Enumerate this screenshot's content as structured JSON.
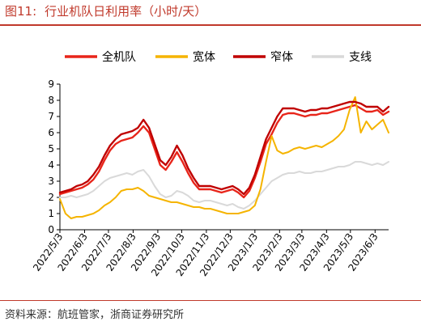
{
  "figure": {
    "number": "图11:",
    "title": "行业机队日利用率（小时/天）",
    "source": "资料来源：航班管家，浙商证券研究所"
  },
  "chart_data": {
    "type": "line",
    "title": "行业机队日利用率（小时/天）",
    "xlabel": "",
    "ylabel": "",
    "ylim": [
      0,
      9
    ],
    "yticks": [
      0,
      1,
      2,
      3,
      4,
      5,
      6,
      7,
      8,
      9
    ],
    "xlim": [
      "2022-05-03",
      "2023-06-20"
    ],
    "xticks": [
      "2022/5/3",
      "2022/6/3",
      "2022/7/3",
      "2022/8/3",
      "2022/9/3",
      "2022/10/3",
      "2022/11/3",
      "2022/12/3",
      "2023/1/3",
      "2023/2/3",
      "2023/3/3",
      "2023/4/3",
      "2023/5/3",
      "2023/6/3"
    ],
    "grid": false,
    "legend_position": "top",
    "series": [
      {
        "name": "全机队",
        "color": "#e8251a",
        "width": 2.4,
        "points": [
          [
            "2022-05-03",
            2.2
          ],
          [
            "2022-05-10",
            2.3
          ],
          [
            "2022-05-17",
            2.4
          ],
          [
            "2022-05-24",
            2.5
          ],
          [
            "2022-05-31",
            2.6
          ],
          [
            "2022-06-07",
            2.8
          ],
          [
            "2022-06-14",
            3.1
          ],
          [
            "2022-06-21",
            3.6
          ],
          [
            "2022-06-28",
            4.3
          ],
          [
            "2022-07-05",
            4.9
          ],
          [
            "2022-07-12",
            5.3
          ],
          [
            "2022-07-19",
            5.5
          ],
          [
            "2022-07-26",
            5.6
          ],
          [
            "2022-08-02",
            5.7
          ],
          [
            "2022-08-09",
            6.0
          ],
          [
            "2022-08-16",
            6.4
          ],
          [
            "2022-08-23",
            6.0
          ],
          [
            "2022-08-30",
            5.0
          ],
          [
            "2022-09-06",
            4.0
          ],
          [
            "2022-09-13",
            3.7
          ],
          [
            "2022-09-20",
            4.2
          ],
          [
            "2022-09-27",
            4.8
          ],
          [
            "2022-10-04",
            4.2
          ],
          [
            "2022-10-11",
            3.5
          ],
          [
            "2022-10-18",
            2.9
          ],
          [
            "2022-10-25",
            2.5
          ],
          [
            "2022-11-01",
            2.5
          ],
          [
            "2022-11-08",
            2.5
          ],
          [
            "2022-11-15",
            2.4
          ],
          [
            "2022-11-22",
            2.3
          ],
          [
            "2022-11-29",
            2.4
          ],
          [
            "2022-12-06",
            2.5
          ],
          [
            "2022-12-13",
            2.3
          ],
          [
            "2022-12-20",
            2.0
          ],
          [
            "2022-12-27",
            2.4
          ],
          [
            "2023-01-03",
            3.2
          ],
          [
            "2023-01-10",
            4.2
          ],
          [
            "2023-01-17",
            5.3
          ],
          [
            "2023-01-24",
            5.9
          ],
          [
            "2023-01-31",
            6.6
          ],
          [
            "2023-02-07",
            7.1
          ],
          [
            "2023-02-14",
            7.2
          ],
          [
            "2023-02-21",
            7.2
          ],
          [
            "2023-02-28",
            7.1
          ],
          [
            "2023-03-07",
            7.0
          ],
          [
            "2023-03-14",
            7.1
          ],
          [
            "2023-03-21",
            7.1
          ],
          [
            "2023-03-28",
            7.2
          ],
          [
            "2023-04-04",
            7.2
          ],
          [
            "2023-04-11",
            7.3
          ],
          [
            "2023-04-18",
            7.4
          ],
          [
            "2023-04-25",
            7.5
          ],
          [
            "2023-05-02",
            7.6
          ],
          [
            "2023-05-09",
            7.7
          ],
          [
            "2023-05-16",
            7.5
          ],
          [
            "2023-05-23",
            7.3
          ],
          [
            "2023-05-30",
            7.3
          ],
          [
            "2023-06-06",
            7.4
          ],
          [
            "2023-06-13",
            7.1
          ],
          [
            "2023-06-20",
            7.3
          ]
        ]
      },
      {
        "name": "宽体",
        "color": "#f5b400",
        "width": 2.0,
        "points": [
          [
            "2022-05-03",
            1.9
          ],
          [
            "2022-05-10",
            1.0
          ],
          [
            "2022-05-17",
            0.7
          ],
          [
            "2022-05-24",
            0.8
          ],
          [
            "2022-05-31",
            0.8
          ],
          [
            "2022-06-07",
            0.9
          ],
          [
            "2022-06-14",
            1.0
          ],
          [
            "2022-06-21",
            1.2
          ],
          [
            "2022-06-28",
            1.5
          ],
          [
            "2022-07-05",
            1.7
          ],
          [
            "2022-07-12",
            2.0
          ],
          [
            "2022-07-19",
            2.4
          ],
          [
            "2022-07-26",
            2.5
          ],
          [
            "2022-08-02",
            2.5
          ],
          [
            "2022-08-09",
            2.6
          ],
          [
            "2022-08-16",
            2.4
          ],
          [
            "2022-08-23",
            2.1
          ],
          [
            "2022-08-30",
            2.0
          ],
          [
            "2022-09-06",
            1.9
          ],
          [
            "2022-09-13",
            1.8
          ],
          [
            "2022-09-20",
            1.7
          ],
          [
            "2022-09-27",
            1.7
          ],
          [
            "2022-10-04",
            1.6
          ],
          [
            "2022-10-11",
            1.5
          ],
          [
            "2022-10-18",
            1.4
          ],
          [
            "2022-10-25",
            1.4
          ],
          [
            "2022-11-01",
            1.3
          ],
          [
            "2022-11-08",
            1.3
          ],
          [
            "2022-11-15",
            1.2
          ],
          [
            "2022-11-22",
            1.1
          ],
          [
            "2022-11-29",
            1.0
          ],
          [
            "2022-12-06",
            1.0
          ],
          [
            "2022-12-13",
            1.0
          ],
          [
            "2022-12-20",
            1.1
          ],
          [
            "2022-12-27",
            1.2
          ],
          [
            "2023-01-03",
            1.5
          ],
          [
            "2023-01-10",
            2.5
          ],
          [
            "2023-01-17",
            4.2
          ],
          [
            "2023-01-24",
            5.8
          ],
          [
            "2023-01-31",
            4.9
          ],
          [
            "2023-02-07",
            4.7
          ],
          [
            "2023-02-14",
            4.8
          ],
          [
            "2023-02-21",
            5.0
          ],
          [
            "2023-02-28",
            5.1
          ],
          [
            "2023-03-07",
            5.0
          ],
          [
            "2023-03-14",
            5.1
          ],
          [
            "2023-03-21",
            5.2
          ],
          [
            "2023-03-28",
            5.1
          ],
          [
            "2023-04-04",
            5.3
          ],
          [
            "2023-04-11",
            5.5
          ],
          [
            "2023-04-18",
            5.8
          ],
          [
            "2023-04-25",
            6.2
          ],
          [
            "2023-05-02",
            7.4
          ],
          [
            "2023-05-09",
            8.2
          ],
          [
            "2023-05-16",
            6.0
          ],
          [
            "2023-05-23",
            6.7
          ],
          [
            "2023-05-30",
            6.2
          ],
          [
            "2023-06-06",
            6.5
          ],
          [
            "2023-06-13",
            6.8
          ],
          [
            "2023-06-20",
            6.0
          ]
        ]
      },
      {
        "name": "窄体",
        "color": "#c00000",
        "width": 2.4,
        "points": [
          [
            "2022-05-03",
            2.3
          ],
          [
            "2022-05-10",
            2.4
          ],
          [
            "2022-05-17",
            2.5
          ],
          [
            "2022-05-24",
            2.7
          ],
          [
            "2022-05-31",
            2.8
          ],
          [
            "2022-06-07",
            3.0
          ],
          [
            "2022-06-14",
            3.4
          ],
          [
            "2022-06-21",
            3.9
          ],
          [
            "2022-06-28",
            4.6
          ],
          [
            "2022-07-05",
            5.2
          ],
          [
            "2022-07-12",
            5.6
          ],
          [
            "2022-07-19",
            5.9
          ],
          [
            "2022-07-26",
            6.0
          ],
          [
            "2022-08-02",
            6.1
          ],
          [
            "2022-08-09",
            6.3
          ],
          [
            "2022-08-16",
            6.8
          ],
          [
            "2022-08-23",
            6.3
          ],
          [
            "2022-08-30",
            5.3
          ],
          [
            "2022-09-06",
            4.3
          ],
          [
            "2022-09-13",
            4.0
          ],
          [
            "2022-09-20",
            4.5
          ],
          [
            "2022-09-27",
            5.2
          ],
          [
            "2022-10-04",
            4.6
          ],
          [
            "2022-10-11",
            3.8
          ],
          [
            "2022-10-18",
            3.2
          ],
          [
            "2022-10-25",
            2.7
          ],
          [
            "2022-11-01",
            2.7
          ],
          [
            "2022-11-08",
            2.7
          ],
          [
            "2022-11-15",
            2.6
          ],
          [
            "2022-11-22",
            2.5
          ],
          [
            "2022-11-29",
            2.6
          ],
          [
            "2022-12-06",
            2.7
          ],
          [
            "2022-12-13",
            2.5
          ],
          [
            "2022-12-20",
            2.2
          ],
          [
            "2022-12-27",
            2.6
          ],
          [
            "2023-01-03",
            3.4
          ],
          [
            "2023-01-10",
            4.5
          ],
          [
            "2023-01-17",
            5.6
          ],
          [
            "2023-01-24",
            6.3
          ],
          [
            "2023-01-31",
            7.0
          ],
          [
            "2023-02-07",
            7.5
          ],
          [
            "2023-02-14",
            7.5
          ],
          [
            "2023-02-21",
            7.5
          ],
          [
            "2023-02-28",
            7.4
          ],
          [
            "2023-03-07",
            7.3
          ],
          [
            "2023-03-14",
            7.4
          ],
          [
            "2023-03-21",
            7.4
          ],
          [
            "2023-03-28",
            7.5
          ],
          [
            "2023-04-04",
            7.5
          ],
          [
            "2023-04-11",
            7.6
          ],
          [
            "2023-04-18",
            7.7
          ],
          [
            "2023-04-25",
            7.8
          ],
          [
            "2023-05-02",
            7.9
          ],
          [
            "2023-05-09",
            7.9
          ],
          [
            "2023-05-16",
            7.8
          ],
          [
            "2023-05-23",
            7.6
          ],
          [
            "2023-05-30",
            7.6
          ],
          [
            "2023-06-06",
            7.6
          ],
          [
            "2023-06-13",
            7.3
          ],
          [
            "2023-06-20",
            7.6
          ]
        ]
      },
      {
        "name": "支线",
        "color": "#d9d9d9",
        "width": 2.0,
        "points": [
          [
            "2022-05-03",
            2.0
          ],
          [
            "2022-05-10",
            2.0
          ],
          [
            "2022-05-17",
            2.1
          ],
          [
            "2022-05-24",
            2.0
          ],
          [
            "2022-05-31",
            2.1
          ],
          [
            "2022-06-07",
            2.2
          ],
          [
            "2022-06-14",
            2.4
          ],
          [
            "2022-06-21",
            2.7
          ],
          [
            "2022-06-28",
            3.0
          ],
          [
            "2022-07-05",
            3.2
          ],
          [
            "2022-07-12",
            3.3
          ],
          [
            "2022-07-19",
            3.4
          ],
          [
            "2022-07-26",
            3.5
          ],
          [
            "2022-08-02",
            3.4
          ],
          [
            "2022-08-09",
            3.6
          ],
          [
            "2022-08-16",
            3.7
          ],
          [
            "2022-08-23",
            3.3
          ],
          [
            "2022-08-30",
            2.7
          ],
          [
            "2022-09-06",
            2.2
          ],
          [
            "2022-09-13",
            2.0
          ],
          [
            "2022-09-20",
            2.1
          ],
          [
            "2022-09-27",
            2.4
          ],
          [
            "2022-10-04",
            2.3
          ],
          [
            "2022-10-11",
            2.1
          ],
          [
            "2022-10-18",
            1.8
          ],
          [
            "2022-10-25",
            1.7
          ],
          [
            "2022-11-01",
            1.8
          ],
          [
            "2022-11-08",
            1.8
          ],
          [
            "2022-11-15",
            1.7
          ],
          [
            "2022-11-22",
            1.6
          ],
          [
            "2022-11-29",
            1.5
          ],
          [
            "2022-12-06",
            1.6
          ],
          [
            "2022-12-13",
            1.4
          ],
          [
            "2022-12-20",
            1.3
          ],
          [
            "2022-12-27",
            1.5
          ],
          [
            "2023-01-03",
            1.8
          ],
          [
            "2023-01-10",
            2.2
          ],
          [
            "2023-01-17",
            2.6
          ],
          [
            "2023-01-24",
            3.0
          ],
          [
            "2023-01-31",
            3.2
          ],
          [
            "2023-02-07",
            3.4
          ],
          [
            "2023-02-14",
            3.5
          ],
          [
            "2023-02-21",
            3.5
          ],
          [
            "2023-02-28",
            3.6
          ],
          [
            "2023-03-07",
            3.5
          ],
          [
            "2023-03-14",
            3.5
          ],
          [
            "2023-03-21",
            3.6
          ],
          [
            "2023-03-28",
            3.6
          ],
          [
            "2023-04-04",
            3.7
          ],
          [
            "2023-04-11",
            3.8
          ],
          [
            "2023-04-18",
            3.9
          ],
          [
            "2023-04-25",
            3.9
          ],
          [
            "2023-05-02",
            4.0
          ],
          [
            "2023-05-09",
            4.2
          ],
          [
            "2023-05-16",
            4.2
          ],
          [
            "2023-05-23",
            4.1
          ],
          [
            "2023-05-30",
            4.0
          ],
          [
            "2023-06-06",
            4.1
          ],
          [
            "2023-06-13",
            4.0
          ],
          [
            "2023-06-20",
            4.2
          ]
        ]
      }
    ]
  }
}
